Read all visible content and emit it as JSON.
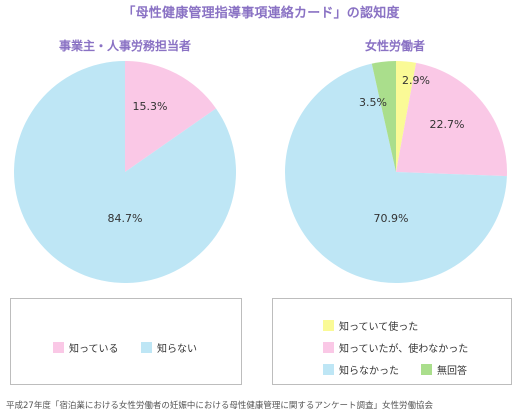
{
  "title": "「母性健康管理指導事項連絡カード」の認知度",
  "colors": {
    "title": "#8a72c4",
    "known_used": "#fafa96",
    "known": "#fac8e6",
    "unknown": "#bee6f5",
    "no_answer": "#aade8c"
  },
  "chart_data": [
    {
      "type": "pie",
      "title": "事業主・人事労務担当者",
      "slices": [
        {
          "label": "知っている",
          "value": 15.3,
          "display": "15.3%",
          "color": "#fac8e6"
        },
        {
          "label": "知らない",
          "value": 84.7,
          "display": "84.7%",
          "color": "#bee6f5"
        }
      ],
      "legend": [
        {
          "label": "知っている",
          "color": "#fac8e6"
        },
        {
          "label": "知らない",
          "color": "#bee6f5"
        }
      ]
    },
    {
      "type": "pie",
      "title": "女性労働者",
      "slices": [
        {
          "label": "知っていて使った",
          "value": 2.9,
          "display": "2.9%",
          "color": "#fafa96"
        },
        {
          "label": "知っていたが、使わなかった",
          "value": 22.7,
          "display": "22.7%",
          "color": "#fac8e6"
        },
        {
          "label": "知らなかった",
          "value": 70.9,
          "display": "70.9%",
          "color": "#bee6f5"
        },
        {
          "label": "無回答",
          "value": 3.5,
          "display": "3.5%",
          "color": "#aade8c"
        }
      ],
      "legend": [
        {
          "label": "知っていて使った",
          "color": "#fafa96"
        },
        {
          "label": "知っていたが、使わなかった",
          "color": "#fac8e6"
        },
        {
          "label": "知らなかった",
          "color": "#bee6f5"
        },
        {
          "label": "無回答",
          "color": "#aade8c"
        }
      ]
    }
  ],
  "source": "平成27年度「宿泊業における女性労働者の妊娠中における母性健康管理に関するアンケート調査」女性労働協会"
}
